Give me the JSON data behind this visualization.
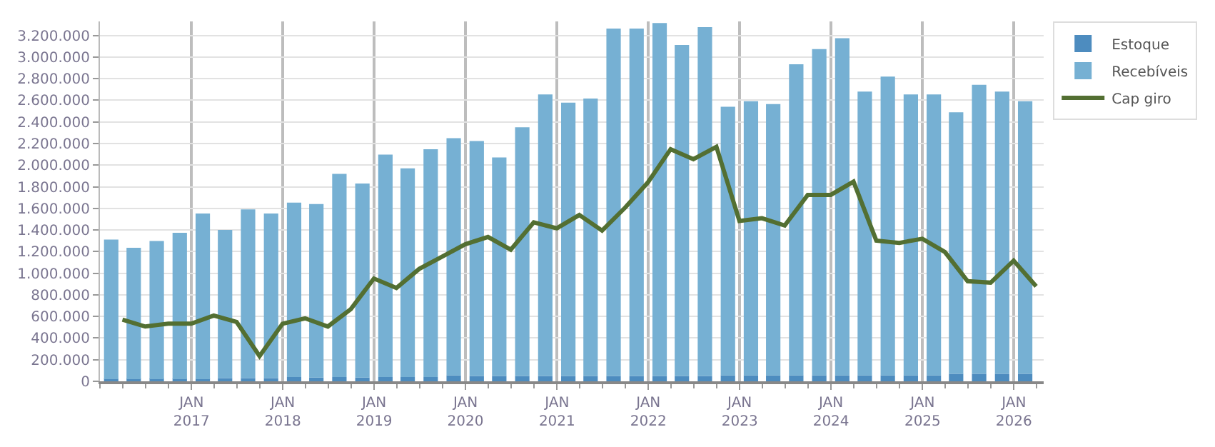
{
  "chart_data": {
    "type": "bar",
    "stacked": true,
    "x": [
      "2016-02-15",
      "2016-05-15",
      "2016-08-15",
      "2016-11-15",
      "2017-02-15",
      "2017-05-15",
      "2017-08-15",
      "2017-11-15",
      "2018-02-15",
      "2018-05-15",
      "2018-08-15",
      "2018-11-15",
      "2019-02-15",
      "2019-05-15",
      "2019-08-15",
      "2019-11-15",
      "2020-02-15",
      "2020-05-15",
      "2020-08-15",
      "2020-11-15",
      "2021-02-15",
      "2021-05-15",
      "2021-08-15",
      "2021-11-15",
      "2022-02-15",
      "2022-05-15",
      "2022-08-15",
      "2022-11-15",
      "2023-02-15",
      "2023-05-15",
      "2023-08-15",
      "2023-11-15",
      "2024-02-15",
      "2024-05-15",
      "2024-08-15",
      "2024-11-15",
      "2025-02-15",
      "2025-05-15",
      "2025-08-15",
      "2025-11-15",
      "2026-02-15"
    ],
    "series": [
      {
        "name": "Estoque",
        "color": "#4d8cbf",
        "values": [
          20000,
          20000,
          20000,
          20000,
          20000,
          30000,
          30000,
          30000,
          40000,
          35000,
          40000,
          35000,
          40000,
          40000,
          40000,
          55000,
          50000,
          50000,
          50000,
          50000,
          50000,
          50000,
          50000,
          50000,
          50000,
          50000,
          50000,
          55000,
          55000,
          55000,
          55000,
          55000,
          55000,
          55000,
          55000,
          55000,
          55000,
          70000,
          70000,
          70000,
          70000
        ]
      },
      {
        "name": "Recebíveis",
        "color": "#76b0d3",
        "values": [
          1291000,
          1215000,
          1278000,
          1354000,
          1532000,
          1370000,
          1560000,
          1522000,
          1613000,
          1605000,
          1880000,
          1796000,
          2057000,
          1930000,
          2108000,
          2194000,
          2174000,
          2022000,
          2301000,
          2605000,
          2529000,
          2567000,
          3214000,
          3214000,
          3265000,
          3062000,
          3227000,
          2486000,
          2537000,
          2511000,
          2879000,
          3019000,
          3120000,
          2626000,
          2765000,
          2600000,
          2600000,
          2420000,
          2674000,
          2611000,
          2522000
        ]
      },
      {
        "name": "Cap giro",
        "type": "line",
        "color": "#536f32",
        "marker": "none",
        "line_style": "solid",
        "x": [
          "2016-03-31",
          "2016-06-30",
          "2016-09-30",
          "2016-12-31",
          "2017-03-31",
          "2017-06-30",
          "2017-09-30",
          "2017-12-31",
          "2018-03-31",
          "2018-06-30",
          "2018-09-30",
          "2018-12-31",
          "2019-03-31",
          "2019-06-30",
          "2019-09-30",
          "2019-12-31",
          "2020-03-31",
          "2020-06-30",
          "2020-09-30",
          "2020-12-31",
          "2021-03-31",
          "2021-06-30",
          "2021-09-30",
          "2021-12-31",
          "2022-03-31",
          "2022-06-30",
          "2022-09-30",
          "2022-12-31",
          "2023-03-31",
          "2023-06-30",
          "2023-09-30",
          "2023-12-31",
          "2024-03-31",
          "2024-06-30",
          "2024-09-30",
          "2024-12-31",
          "2025-03-31",
          "2025-06-30",
          "2025-09-30",
          "2025-12-31",
          "2026-03-31"
        ],
        "values": [
          571000,
          507000,
          533000,
          533000,
          609000,
          550000,
          233000,
          533000,
          583000,
          507000,
          668000,
          951000,
          863000,
          1040000,
          1154000,
          1268000,
          1336000,
          1218000,
          1471000,
          1416000,
          1539000,
          1395000,
          1607000,
          1843000,
          2148000,
          2055000,
          2169000,
          1484000,
          1509000,
          1442000,
          1725000,
          1725000,
          1848000,
          1302000,
          1281000,
          1319000,
          1197000,
          926000,
          913000,
          1116000,
          879000
        ]
      }
    ],
    "xlim": [
      "2016-01-01",
      "2026-04-30"
    ],
    "xticks": [
      {
        "value": "2017-01-01",
        "label": "JAN\n2017"
      },
      {
        "value": "2018-01-01",
        "label": "JAN\n2018"
      },
      {
        "value": "2019-01-01",
        "label": "JAN\n2019"
      },
      {
        "value": "2020-01-01",
        "label": "JAN\n2020"
      },
      {
        "value": "2021-01-01",
        "label": "JAN\n2021"
      },
      {
        "value": "2022-01-01",
        "label": "JAN\n2022"
      },
      {
        "value": "2023-01-01",
        "label": "JAN\n2023"
      },
      {
        "value": "2024-01-01",
        "label": "JAN\n2024"
      },
      {
        "value": "2025-01-01",
        "label": "JAN\n2025"
      },
      {
        "value": "2026-01-01",
        "label": "JAN\n2026"
      }
    ],
    "ylim": [
      0,
      3330000
    ],
    "yticks": [
      0,
      {
        "value": 200000,
        "label": "200.000"
      },
      {
        "value": 400000,
        "label": "400.000"
      },
      {
        "value": 600000,
        "label": "600.000"
      },
      {
        "value": 800000,
        "label": "800.000"
      },
      {
        "value": 1000000,
        "label": "1.000.000"
      },
      {
        "value": 1200000,
        "label": "1.200.000"
      },
      {
        "value": 1400000,
        "label": "1.400.000"
      },
      {
        "value": 1600000,
        "label": "1.600.000"
      },
      {
        "value": 1800000,
        "label": "1.800.000"
      },
      {
        "value": 2000000,
        "label": "2.000.000"
      },
      {
        "value": 2200000,
        "label": "2.200.000"
      },
      {
        "value": 2400000,
        "label": "2.400.000"
      },
      {
        "value": 2600000,
        "label": "2.600.000"
      },
      {
        "value": 2800000,
        "label": "2.800.000"
      },
      {
        "value": 3000000,
        "label": "3.000.000"
      },
      {
        "value": 3200000,
        "label": "3.200.000"
      }
    ],
    "grid": true,
    "legend": "top right"
  }
}
